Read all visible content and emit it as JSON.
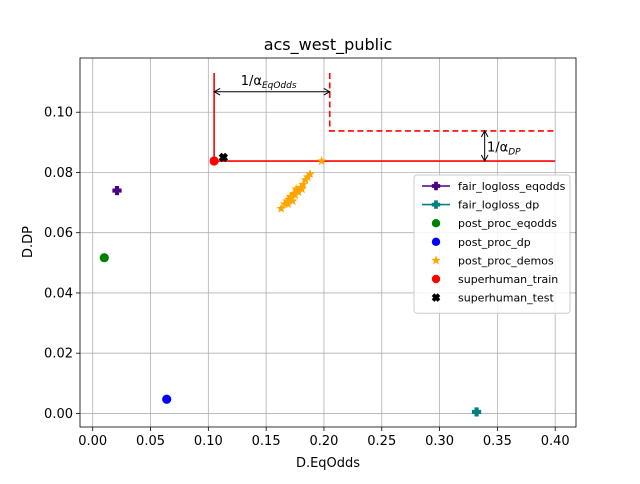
{
  "chart_data": {
    "type": "scatter",
    "title": "acs_west_public",
    "xlabel": "D.EqOdds",
    "ylabel": "D.DP",
    "xlim": [
      -0.011,
      0.418
    ],
    "ylim": [
      -0.0045,
      0.118
    ],
    "xticks": [
      0.0,
      0.05,
      0.1,
      0.15,
      0.2,
      0.25,
      0.3,
      0.35,
      0.4
    ],
    "xtick_labels": [
      "0.00",
      "0.05",
      "0.10",
      "0.15",
      "0.20",
      "0.25",
      "0.30",
      "0.35",
      "0.40"
    ],
    "yticks": [
      0.0,
      0.02,
      0.04,
      0.06,
      0.08,
      0.1
    ],
    "ytick_labels": [
      "0.00",
      "0.02",
      "0.04",
      "0.06",
      "0.08",
      "0.10"
    ],
    "grid": true,
    "legend_position": "center-right",
    "series": [
      {
        "name": "fair_logloss_eqodds",
        "marker": "plus-filled",
        "color": "#4b0082",
        "points": [
          [
            0.021,
            0.074
          ]
        ]
      },
      {
        "name": "fair_logloss_dp",
        "marker": "plus-filled",
        "color": "#008080",
        "points": [
          [
            0.332,
            0.0005
          ]
        ]
      },
      {
        "name": "post_proc_eqodds",
        "marker": "circle",
        "color": "#008000",
        "points": [
          [
            0.01,
            0.0517
          ]
        ]
      },
      {
        "name": "post_proc_dp",
        "marker": "circle",
        "color": "#0000ff",
        "points": [
          [
            0.064,
            0.0047
          ]
        ]
      },
      {
        "name": "post_proc_demos",
        "marker": "star",
        "color": "#ffa500",
        "points": [
          [
            0.163,
            0.068
          ],
          [
            0.166,
            0.0695
          ],
          [
            0.168,
            0.0705
          ],
          [
            0.17,
            0.071
          ],
          [
            0.171,
            0.072
          ],
          [
            0.172,
            0.0715
          ],
          [
            0.174,
            0.073
          ],
          [
            0.175,
            0.0725
          ],
          [
            0.177,
            0.074
          ],
          [
            0.178,
            0.0735
          ],
          [
            0.18,
            0.075
          ],
          [
            0.182,
            0.076
          ],
          [
            0.184,
            0.0775
          ],
          [
            0.186,
            0.0785
          ],
          [
            0.188,
            0.0795
          ],
          [
            0.176,
            0.0745
          ],
          [
            0.173,
            0.0705
          ],
          [
            0.169,
            0.0695
          ],
          [
            0.181,
            0.0745
          ],
          [
            0.198,
            0.0838
          ]
        ]
      },
      {
        "name": "superhuman_train",
        "marker": "circle",
        "color": "#ff0000",
        "points": [
          [
            0.105,
            0.0838
          ]
        ]
      },
      {
        "name": "superhuman_test",
        "marker": "x-filled",
        "color": "#000000",
        "points": [
          [
            0.113,
            0.085
          ]
        ]
      }
    ],
    "reference_lines": {
      "solid": {
        "corner_x": 0.105,
        "corner_y": 0.0838,
        "x_end": 0.4,
        "y_end": 0.113,
        "color": "#ff0000"
      },
      "dashed": {
        "corner_x": 0.205,
        "corner_y": 0.0938,
        "x_end": 0.4,
        "y_end": 0.113,
        "color": "#ff0000"
      }
    },
    "annotations": [
      {
        "text_main": "1/α",
        "text_sub": "EqOdds",
        "arrow_from": [
          0.105,
          0.1068
        ],
        "arrow_to": [
          0.205,
          0.1068
        ],
        "label_at": [
          0.128,
          0.109
        ]
      },
      {
        "text_main": "1/α",
        "text_sub": "DP",
        "arrow_from": [
          0.339,
          0.0838
        ],
        "arrow_to": [
          0.339,
          0.0938
        ],
        "label_at": [
          0.341,
          0.087
        ]
      }
    ]
  }
}
